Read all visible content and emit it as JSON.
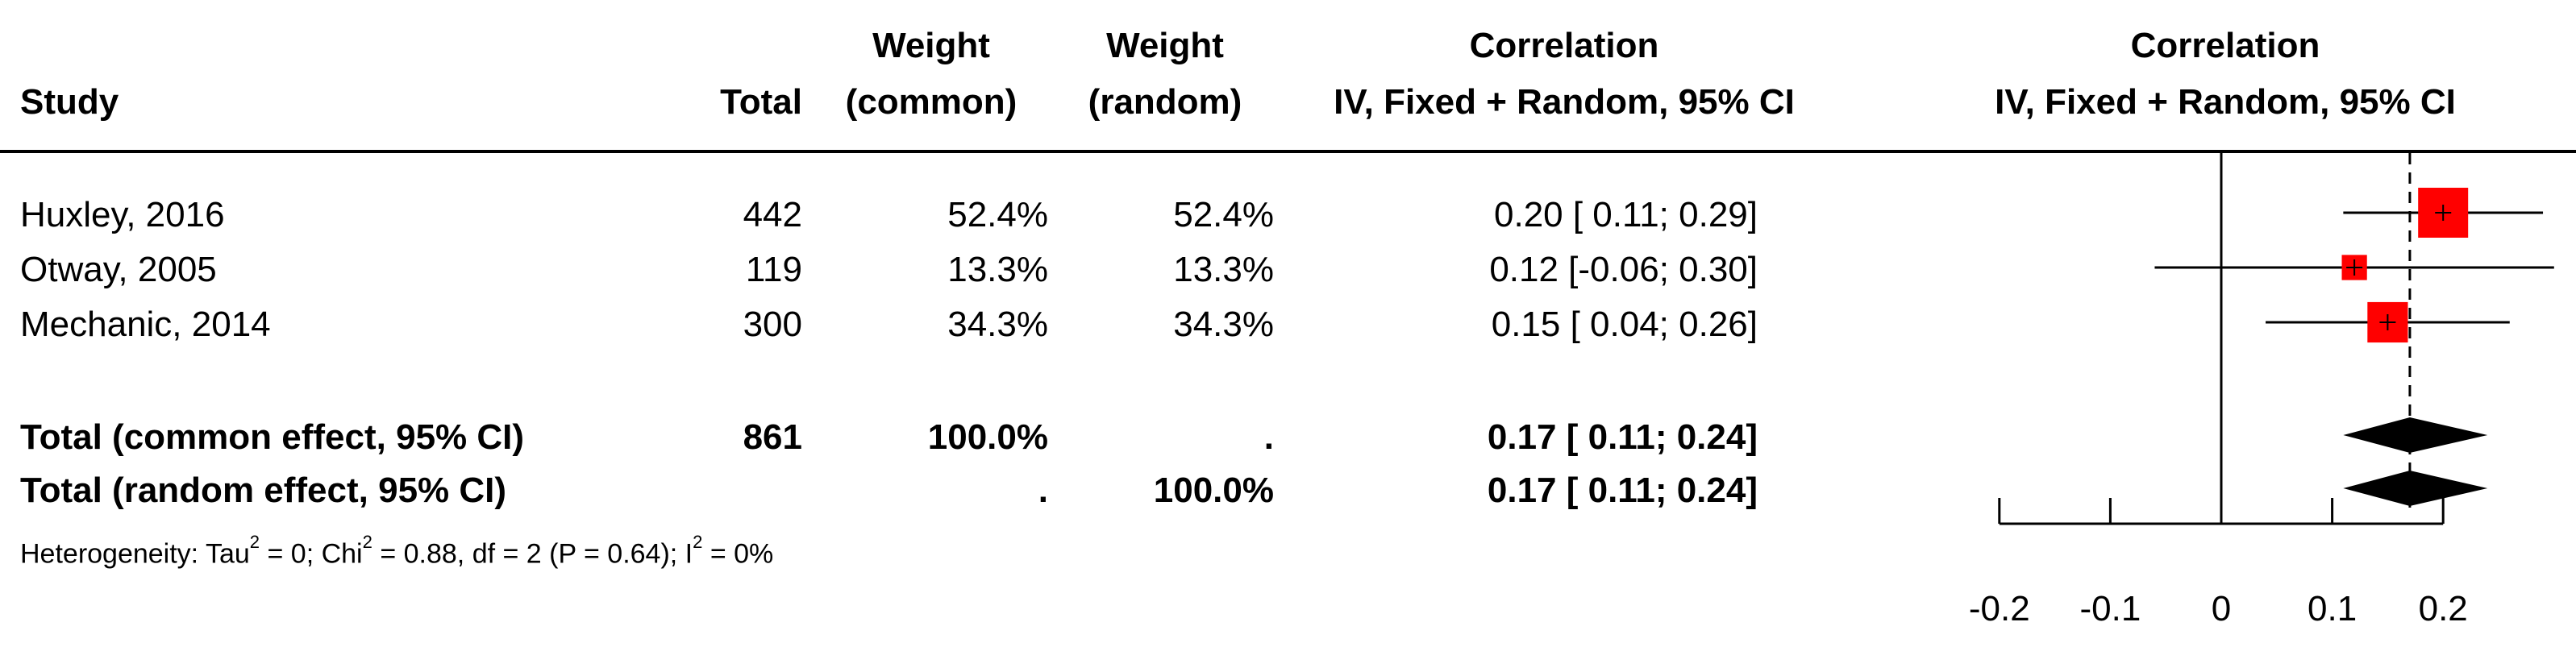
{
  "headers": {
    "study": "Study",
    "total": "Total",
    "weight_common": [
      "Weight",
      "(common)"
    ],
    "weight_random": [
      "Weight",
      "(random)"
    ],
    "correlation": [
      "Correlation",
      "IV, Fixed + Random, 95% CI"
    ],
    "plot": [
      "Correlation",
      "IV, Fixed + Random, 95% CI"
    ]
  },
  "studies": [
    {
      "name": "Huxley, 2016",
      "total": "442",
      "w_common": "52.4%",
      "w_random": "52.4%",
      "ci_text": "0.20 [ 0.11; 0.29]"
    },
    {
      "name": "Otway, 2005",
      "total": "119",
      "w_common": "13.3%",
      "w_random": "13.3%",
      "ci_text": "0.12 [-0.06; 0.30]"
    },
    {
      "name": "Mechanic, 2014",
      "total": "300",
      "w_common": "34.3%",
      "w_random": "34.3%",
      "ci_text": "0.15 [ 0.04; 0.26]"
    }
  ],
  "totals": [
    {
      "name": "Total (common effect, 95% CI)",
      "total": "861",
      "w_common": "100.0%",
      "w_random": ".",
      "ci_text": "0.17 [ 0.11; 0.24]"
    },
    {
      "name": "Total (random effect, 95% CI)",
      "total": "",
      "w_common": ".",
      "w_random": "100.0%",
      "ci_text": "0.17 [ 0.11; 0.24]"
    }
  ],
  "heterogeneity": {
    "p1": "Heterogeneity: Tau",
    "s1": "2",
    "p2": " = 0; Chi",
    "s2": "2",
    "p3": " = 0.88, df = 2 (P = 0.64); I",
    "s3": "2",
    "p4": " = 0%"
  },
  "colors": {
    "square": "#ff0000",
    "diamond": "#000000",
    "line": "#000000"
  },
  "chart_data": {
    "type": "forest",
    "title": "Correlation",
    "xlabel": "",
    "ylabel": "",
    "x_ticks": [
      -0.2,
      -0.1,
      0,
      0.1,
      0.2
    ],
    "x_tick_labels": [
      "-0.2",
      "-0.1",
      "0",
      "0.1",
      "0.2"
    ],
    "xlim": [
      -0.2,
      0.2
    ],
    "null_line": 0,
    "reference_line": 0.17,
    "studies": [
      {
        "label": "Huxley, 2016",
        "estimate": 0.2,
        "lower": 0.11,
        "upper": 0.29,
        "weight": 52.4
      },
      {
        "label": "Otway, 2005",
        "estimate": 0.12,
        "lower": -0.06,
        "upper": 0.3,
        "weight": 13.3
      },
      {
        "label": "Mechanic, 2014",
        "estimate": 0.15,
        "lower": 0.04,
        "upper": 0.26,
        "weight": 34.3
      }
    ],
    "summary": [
      {
        "label": "Total (common effect, 95% CI)",
        "estimate": 0.17,
        "lower": 0.11,
        "upper": 0.24
      },
      {
        "label": "Total (random effect, 95% CI)",
        "estimate": 0.17,
        "lower": 0.11,
        "upper": 0.24
      }
    ]
  }
}
